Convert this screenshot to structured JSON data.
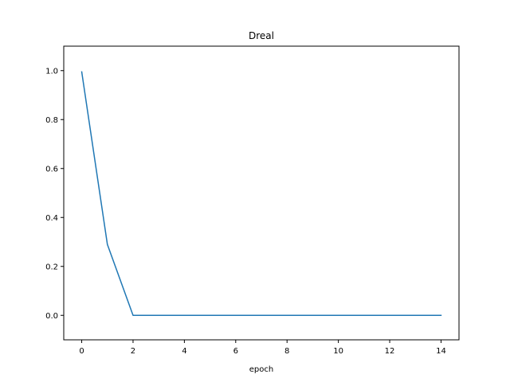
{
  "chart_data": {
    "type": "line",
    "title": "Dreal",
    "xlabel": "epoch",
    "ylabel": "",
    "xlim": [
      -0.7,
      14.7
    ],
    "ylim": [
      -0.1,
      1.1
    ],
    "xticks": [
      0,
      2,
      4,
      6,
      8,
      10,
      12,
      14
    ],
    "yticks": [
      0.0,
      0.2,
      0.4,
      0.6,
      0.8,
      1.0
    ],
    "xtick_labels": [
      "0",
      "2",
      "4",
      "6",
      "8",
      "10",
      "12",
      "14"
    ],
    "ytick_labels": [
      "0.0",
      "0.2",
      "0.4",
      "0.6",
      "0.8",
      "1.0"
    ],
    "grid": false,
    "series": [
      {
        "color": "#1f77b4",
        "x": [
          0,
          1,
          2,
          3,
          4,
          5,
          6,
          7,
          8,
          9,
          10,
          11,
          12,
          13,
          14
        ],
        "y": [
          0.995,
          0.29,
          0.0,
          0.0,
          0.0,
          0.0,
          0.0,
          0.0,
          0.0,
          0.0,
          0.0,
          0.0,
          0.0,
          0.0,
          0.0
        ]
      }
    ]
  }
}
